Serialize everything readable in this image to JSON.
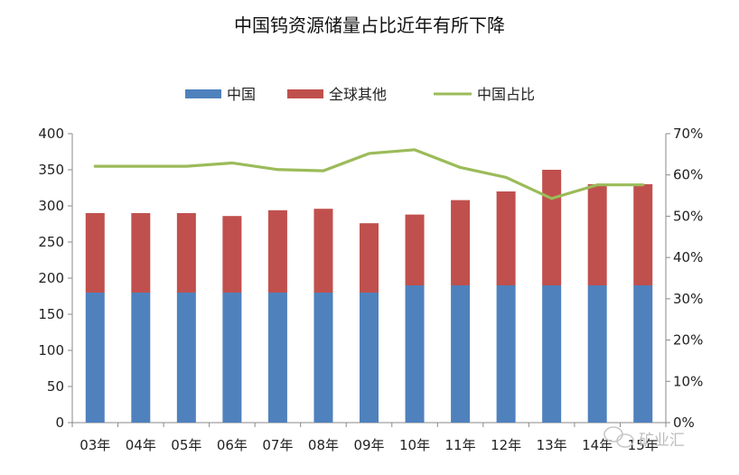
{
  "chart_data": {
    "type": "bar",
    "stacked": true,
    "title": "中国钨资源储量占比近年有所下降",
    "categories": [
      "03年",
      "04年",
      "05年",
      "06年",
      "07年",
      "08年",
      "09年",
      "10年",
      "11年",
      "12年",
      "13年",
      "14年",
      "15年"
    ],
    "series": [
      {
        "name": "中国",
        "kind": "bar",
        "axis": "left",
        "values": [
          180,
          180,
          180,
          180,
          180,
          180,
          180,
          190,
          190,
          190,
          190,
          190,
          190
        ]
      },
      {
        "name": "全球其他",
        "kind": "bar",
        "axis": "left",
        "values": [
          110,
          110,
          110,
          106,
          114,
          116,
          96,
          98,
          118,
          130,
          160,
          140,
          140
        ]
      },
      {
        "name": "中国占比",
        "kind": "line",
        "axis": "right",
        "values": [
          62.1,
          62.1,
          62.1,
          62.9,
          61.3,
          61.0,
          65.2,
          66.1,
          61.8,
          59.4,
          54.3,
          57.6,
          57.6
        ]
      }
    ],
    "y_left": {
      "min": 0,
      "max": 400,
      "step": 50,
      "ticks": [
        "0",
        "50",
        "100",
        "150",
        "200",
        "250",
        "300",
        "350",
        "400"
      ]
    },
    "y_right": {
      "min": 0,
      "max": 70,
      "step": 10,
      "ticks": [
        "0%",
        "10%",
        "20%",
        "30%",
        "40%",
        "50%",
        "60%",
        "70%"
      ]
    },
    "legend_position": "top",
    "grid": false,
    "colors": {
      "china": "#4f81bd",
      "others": "#c0504d",
      "share": "#9bbb59"
    }
  },
  "watermark": {
    "text": "矿业汇",
    "icon": "wechat-icon"
  }
}
